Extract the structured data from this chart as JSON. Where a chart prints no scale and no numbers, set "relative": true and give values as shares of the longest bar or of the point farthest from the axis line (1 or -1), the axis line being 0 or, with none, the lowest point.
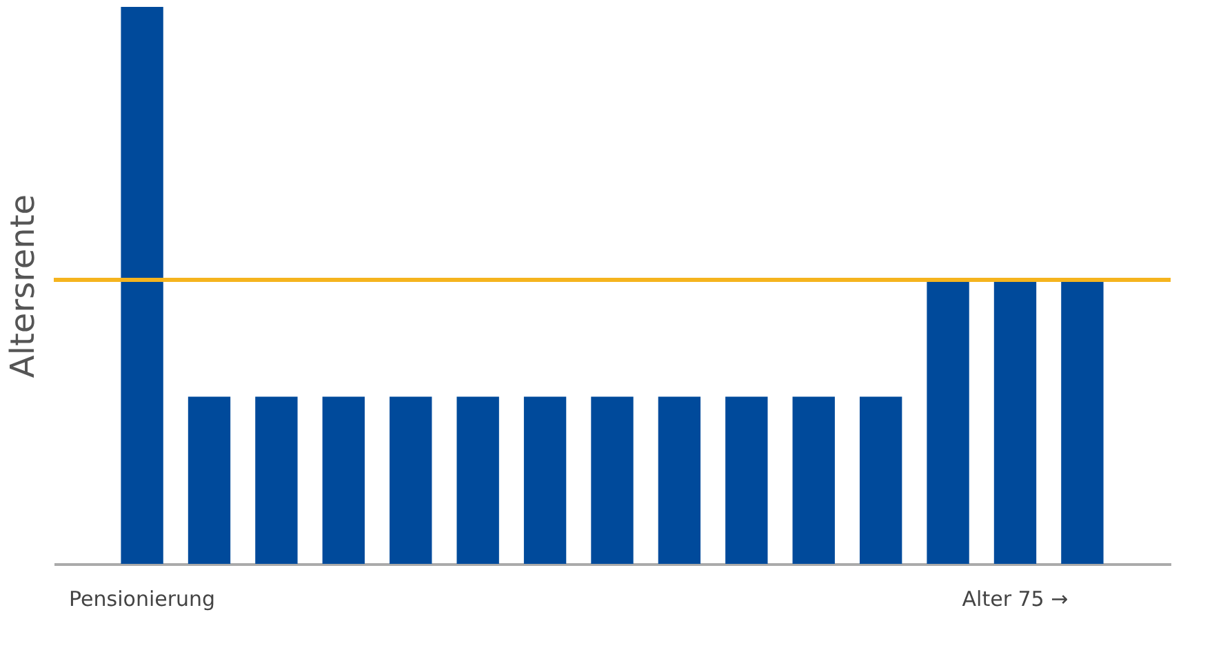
{
  "chart_data": {
    "type": "bar",
    "relative": true,
    "ylabel": "Altersrente",
    "categories": [
      "Pensionierung",
      null,
      null,
      null,
      null,
      null,
      null,
      null,
      null,
      null,
      null,
      null,
      null,
      "Alter 75 →",
      null
    ],
    "values": [
      1,
      0.3,
      0.3,
      0.3,
      0.3,
      0.3,
      0.3,
      0.3,
      0.3,
      0.3,
      0.3,
      0.3,
      0.51,
      0.51,
      0.51
    ],
    "color": "#004a9b",
    "ref_lines": [
      {
        "axis": "y",
        "value": 0.51,
        "color": "#f5b41e"
      }
    ],
    "grid": false
  }
}
